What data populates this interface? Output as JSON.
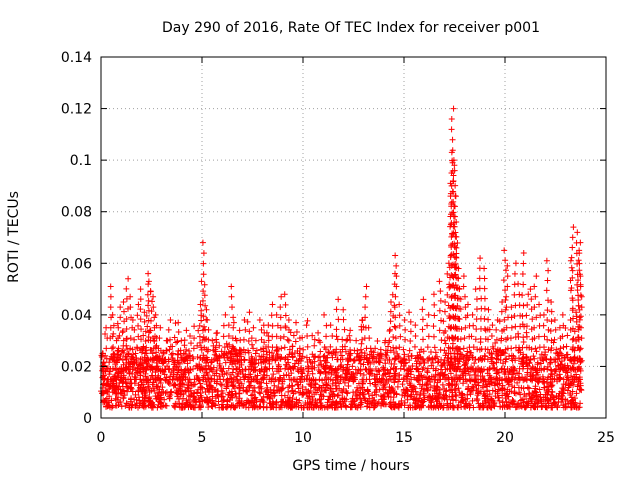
{
  "chart_data": {
    "type": "scatter",
    "title": "Day 290 of 2016, Rate Of TEC Index for receiver p001",
    "xlabel": "GPS time / hours",
    "ylabel": "ROTI / TECUs",
    "xlim": [
      0,
      25
    ],
    "ylim": [
      0,
      0.14
    ],
    "xticks": [
      0,
      5,
      10,
      15,
      20,
      25
    ],
    "xtick_labels": [
      "0",
      "5",
      "10",
      "15",
      "20",
      "25"
    ],
    "yticks": [
      0,
      0.02,
      0.04,
      0.06,
      0.08,
      0.1,
      0.12,
      0.14
    ],
    "ytick_labels": [
      "0",
      "0.02",
      "0.04",
      "0.06",
      "0.08",
      "0.1",
      "0.12",
      "0.14"
    ],
    "grid": true,
    "marker": "+",
    "series": [
      {
        "name": "ROTI",
        "color": "#ff0000",
        "points": [
          [
            0.1,
            0.025
          ],
          [
            0.2,
            0.018
          ],
          [
            0.3,
            0.035
          ],
          [
            0.4,
            0.012
          ],
          [
            0.5,
            0.051
          ],
          [
            0.6,
            0.04
          ],
          [
            0.7,
            0.022
          ],
          [
            0.8,
            0.03
          ],
          [
            0.9,
            0.043
          ],
          [
            1.0,
            0.015
          ],
          [
            1.1,
            0.045
          ],
          [
            1.2,
            0.028
          ],
          [
            1.3,
            0.054
          ],
          [
            1.4,
            0.02
          ],
          [
            1.5,
            0.047
          ],
          [
            1.6,
            0.038
          ],
          [
            1.7,
            0.025
          ],
          [
            1.8,
            0.044
          ],
          [
            1.9,
            0.018
          ],
          [
            2.0,
            0.05
          ],
          [
            2.1,
            0.032
          ],
          [
            2.2,
            0.041
          ],
          [
            2.3,
            0.056
          ],
          [
            2.4,
            0.053
          ],
          [
            2.5,
            0.049
          ],
          [
            2.6,
            0.047
          ],
          [
            2.7,
            0.04
          ],
          [
            2.8,
            0.028
          ],
          [
            2.9,
            0.035
          ],
          [
            3.0,
            0.022
          ],
          [
            3.2,
            0.03
          ],
          [
            3.4,
            0.038
          ],
          [
            3.6,
            0.025
          ],
          [
            3.8,
            0.037
          ],
          [
            4.0,
            0.03
          ],
          [
            4.2,
            0.034
          ],
          [
            4.4,
            0.026
          ],
          [
            4.6,
            0.031
          ],
          [
            4.8,
            0.028
          ],
          [
            4.9,
            0.044
          ],
          [
            5.0,
            0.053
          ],
          [
            5.1,
            0.068
          ],
          [
            5.2,
            0.042
          ],
          [
            5.3,
            0.038
          ],
          [
            5.5,
            0.03
          ],
          [
            5.7,
            0.033
          ],
          [
            5.9,
            0.028
          ],
          [
            6.1,
            0.04
          ],
          [
            6.3,
            0.036
          ],
          [
            6.5,
            0.051
          ],
          [
            6.7,
            0.03
          ],
          [
            6.9,
            0.034
          ],
          [
            7.1,
            0.038
          ],
          [
            7.3,
            0.041
          ],
          [
            7.5,
            0.035
          ],
          [
            7.7,
            0.03
          ],
          [
            7.9,
            0.038
          ],
          [
            8.1,
            0.033
          ],
          [
            8.3,
            0.036
          ],
          [
            8.5,
            0.044
          ],
          [
            8.7,
            0.04
          ],
          [
            8.9,
            0.047
          ],
          [
            9.1,
            0.048
          ],
          [
            9.3,
            0.038
          ],
          [
            9.5,
            0.032
          ],
          [
            9.7,
            0.037
          ],
          [
            9.9,
            0.031
          ],
          [
            10.2,
            0.036
          ],
          [
            10.5,
            0.028
          ],
          [
            10.8,
            0.033
          ],
          [
            11.1,
            0.04
          ],
          [
            11.4,
            0.036
          ],
          [
            11.7,
            0.046
          ],
          [
            12.0,
            0.042
          ],
          [
            12.3,
            0.034
          ],
          [
            12.6,
            0.03
          ],
          [
            12.9,
            0.038
          ],
          [
            13.1,
            0.051
          ],
          [
            13.3,
            0.035
          ],
          [
            13.6,
            0.027
          ],
          [
            13.9,
            0.024
          ],
          [
            14.1,
            0.03
          ],
          [
            14.3,
            0.045
          ],
          [
            14.5,
            0.056
          ],
          [
            14.6,
            0.063
          ],
          [
            14.8,
            0.044
          ],
          [
            15.0,
            0.038
          ],
          [
            15.3,
            0.041
          ],
          [
            15.6,
            0.036
          ],
          [
            15.9,
            0.046
          ],
          [
            16.2,
            0.04
          ],
          [
            16.5,
            0.048
          ],
          [
            16.8,
            0.053
          ],
          [
            17.0,
            0.045
          ],
          [
            17.2,
            0.06
          ],
          [
            17.3,
            0.09
          ],
          [
            17.35,
            0.103
          ],
          [
            17.4,
            0.12
          ],
          [
            17.45,
            0.1
          ],
          [
            17.5,
            0.098
          ],
          [
            17.55,
            0.086
          ],
          [
            17.6,
            0.076
          ],
          [
            17.65,
            0.066
          ],
          [
            17.7,
            0.058
          ],
          [
            17.8,
            0.05
          ],
          [
            18.0,
            0.055
          ],
          [
            18.2,
            0.044
          ],
          [
            18.4,
            0.04
          ],
          [
            18.6,
            0.05
          ],
          [
            18.8,
            0.062
          ],
          [
            19.0,
            0.058
          ],
          [
            19.2,
            0.042
          ],
          [
            19.4,
            0.036
          ],
          [
            19.6,
            0.038
          ],
          [
            19.8,
            0.045
          ],
          [
            20.0,
            0.065
          ],
          [
            20.1,
            0.059
          ],
          [
            20.3,
            0.043
          ],
          [
            20.5,
            0.06
          ],
          [
            20.7,
            0.052
          ],
          [
            20.9,
            0.064
          ],
          [
            21.1,
            0.048
          ],
          [
            21.3,
            0.05
          ],
          [
            21.5,
            0.055
          ],
          [
            21.7,
            0.044
          ],
          [
            21.9,
            0.04
          ],
          [
            22.1,
            0.061
          ],
          [
            22.3,
            0.045
          ],
          [
            22.5,
            0.038
          ],
          [
            22.7,
            0.035
          ],
          [
            22.9,
            0.04
          ],
          [
            23.1,
            0.032
          ],
          [
            23.3,
            0.061
          ],
          [
            23.35,
            0.074
          ],
          [
            23.5,
            0.041
          ],
          [
            23.6,
            0.072
          ],
          [
            23.65,
            0.065
          ],
          [
            23.7,
            0.068
          ],
          [
            23.75,
            0.055
          ]
        ]
      }
    ]
  }
}
